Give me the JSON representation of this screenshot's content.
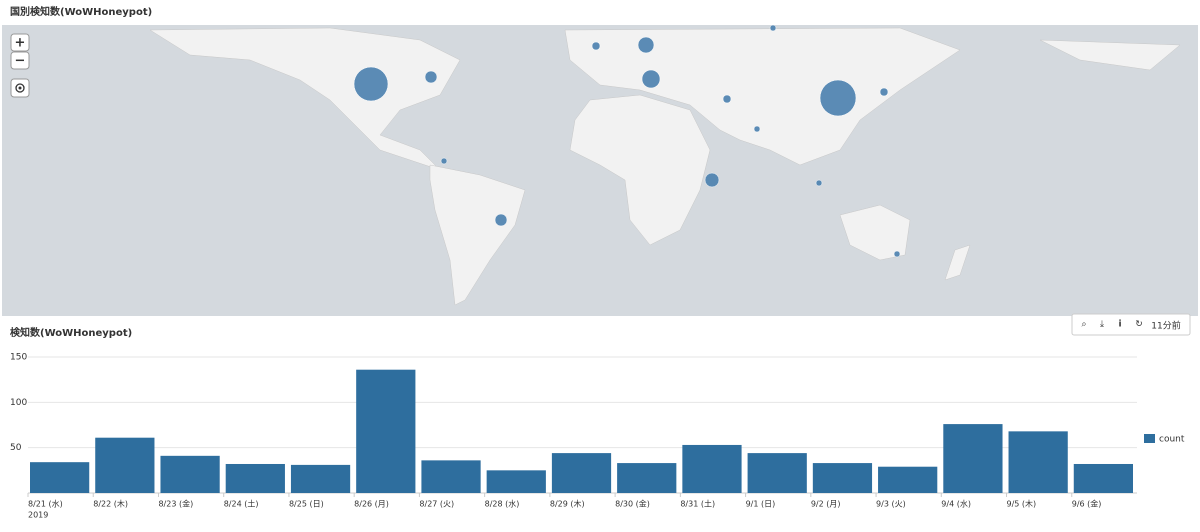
{
  "map_panel": {
    "title": "国別検知数(WoWHoneypot)",
    "controls": [
      "+",
      "−"
    ]
  },
  "toolbar": {
    "time_ago": "11分前"
  },
  "chart_data": {
    "type": "bar",
    "title": "検知数(WoWHoneypot)",
    "categories": [
      "8/21 (水)",
      "8/22 (木)",
      "8/23 (金)",
      "8/24 (土)",
      "8/25 (日)",
      "8/26 (月)",
      "8/27 (火)",
      "8/28 (水)",
      "8/29 (木)",
      "8/30 (金)",
      "8/31 (土)",
      "9/1 (日)",
      "9/2 (月)",
      "9/3 (火)",
      "9/4 (水)",
      "9/5 (木)",
      "9/6 (金)"
    ],
    "year_label": "2019",
    "series": [
      {
        "name": "count",
        "color": "#2e6e9e",
        "values": [
          34,
          61,
          41,
          32,
          31,
          136,
          36,
          25,
          44,
          33,
          53,
          44,
          33,
          29,
          76,
          68,
          32
        ]
      }
    ],
    "ylim": [
      0,
      150
    ],
    "yticks": [
      50,
      100,
      150
    ],
    "grid": true,
    "legend": "right"
  }
}
